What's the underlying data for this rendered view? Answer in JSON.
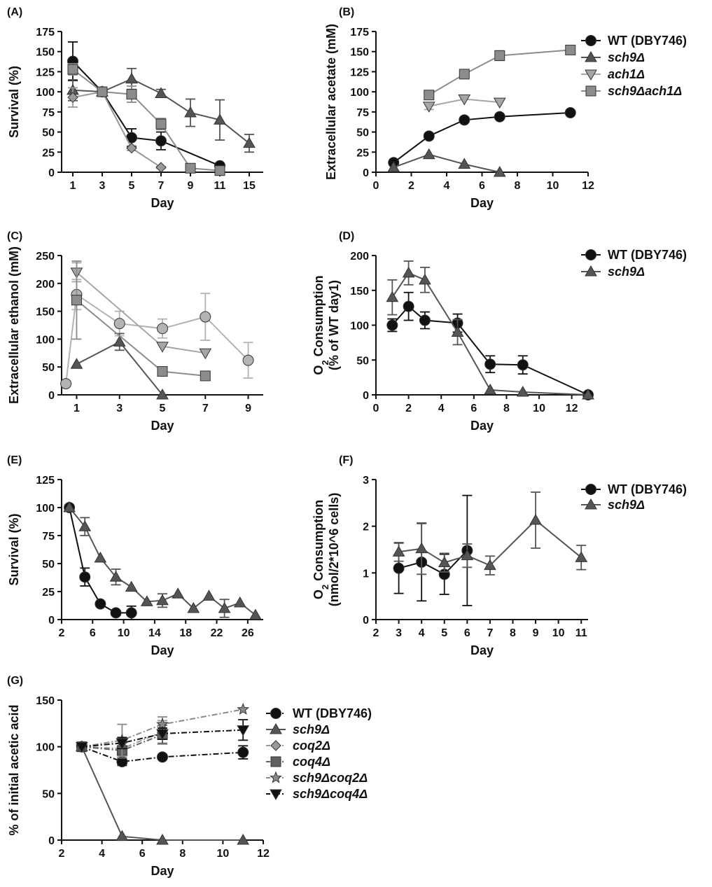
{
  "figure": {
    "panels": [
      "(A)",
      "(B)",
      "(C)",
      "(D)",
      "(E)",
      "(F)",
      "(G)"
    ]
  },
  "colors": {
    "WT": "#111111",
    "sch9": "#555555",
    "ach1": "#a6a6a6",
    "sch9ach1": "#8c8c8c",
    "coq2": "#999999",
    "coq4": "#606060",
    "sch9coq2": "#8a8a8a",
    "sch9coq4": "#111111",
    "gray_circle": "#b3b3b3"
  },
  "legends": {
    "B": [
      "WT (DBY746)",
      "sch9Δ",
      "ach1Δ",
      "sch9Δach1Δ"
    ],
    "D": [
      "WT (DBY746)",
      "sch9Δ"
    ],
    "F": [
      "WT (DBY746)",
      "sch9Δ"
    ],
    "G": [
      "WT (DBY746)",
      "sch9Δ",
      "coq2Δ",
      "coq4Δ",
      "sch9Δcoq2Δ",
      "sch9Δcoq4Δ"
    ]
  },
  "chart_data": [
    {
      "panel": "(A)",
      "type": "line",
      "xlabel": "Day",
      "ylabel": "Survival (%)",
      "x_ticks": [
        "1",
        "3",
        "5",
        "7",
        "9",
        "11",
        "15"
      ],
      "ylim": [
        0,
        175
      ],
      "y_ticks": [
        "0",
        "25",
        "50",
        "75",
        "100",
        "125",
        "150",
        "175"
      ],
      "series": [
        {
          "key": "WT",
          "marker": "circle",
          "points": [
            [
              1,
              138,
              24
            ],
            [
              3,
              100,
              0
            ],
            [
              5,
              43,
              11
            ],
            [
              7,
              39,
              11
            ],
            [
              11,
              8,
              3
            ]
          ]
        },
        {
          "key": "sch9",
          "marker": "triangle",
          "points": [
            [
              1,
              102,
              13
            ],
            [
              3,
              100,
              0
            ],
            [
              5,
              116,
              13
            ],
            [
              7,
              98,
              5
            ],
            [
              9,
              74,
              17
            ],
            [
              11,
              65,
              25
            ],
            [
              15,
              36,
              11
            ]
          ]
        },
        {
          "key": "coq2",
          "marker": "diamond",
          "points": [
            [
              1,
              93,
              12
            ],
            [
              3,
              100,
              0
            ],
            [
              5,
              30,
              3
            ],
            [
              7,
              6,
              1
            ]
          ]
        },
        {
          "key": "sch9ach1",
          "marker": "square",
          "points": [
            [
              1,
              128,
              7
            ],
            [
              3,
              100,
              0
            ],
            [
              5,
              97,
              10
            ],
            [
              7,
              60,
              7
            ],
            [
              9,
              5,
              3
            ],
            [
              11,
              2,
              1
            ]
          ]
        }
      ]
    },
    {
      "panel": "(B)",
      "type": "line",
      "xlabel": "Day",
      "ylabel": "Extracellular acetate (mM)",
      "x_ticks": [
        "0",
        "2",
        "4",
        "6",
        "8",
        "10",
        "12"
      ],
      "xlim": [
        0,
        12
      ],
      "ylim": [
        0,
        175
      ],
      "y_ticks": [
        "0",
        "25",
        "50",
        "75",
        "100",
        "125",
        "150",
        "175"
      ],
      "series": [
        {
          "key": "WT",
          "marker": "circle",
          "points": [
            [
              1,
              12,
              0
            ],
            [
              3,
              45,
              0
            ],
            [
              5,
              65,
              0
            ],
            [
              7,
              69,
              0
            ],
            [
              11,
              74,
              0
            ]
          ]
        },
        {
          "key": "sch9",
          "marker": "triangle",
          "points": [
            [
              1,
              6,
              0
            ],
            [
              3,
              22,
              0
            ],
            [
              5,
              10,
              0
            ],
            [
              7,
              0,
              0
            ]
          ]
        },
        {
          "key": "ach1",
          "marker": "triangle-down",
          "points": [
            [
              3,
              82,
              4
            ],
            [
              5,
              91,
              0
            ],
            [
              7,
              87,
              0
            ]
          ]
        },
        {
          "key": "sch9ach1",
          "marker": "square",
          "points": [
            [
              3,
              96,
              5
            ],
            [
              5,
              122,
              4
            ],
            [
              7,
              145,
              6
            ],
            [
              11,
              152,
              0
            ]
          ]
        }
      ]
    },
    {
      "panel": "(C)",
      "type": "line",
      "xlabel": "Day",
      "ylabel": "Extracellular ethanol (mM)",
      "x_ticks": [
        "1",
        "3",
        "5",
        "7",
        "9"
      ],
      "xlim": [
        0.3,
        9.7
      ],
      "ylim": [
        0,
        250
      ],
      "y_ticks": [
        "0",
        "50",
        "100",
        "150",
        "200",
        "250"
      ],
      "series": [
        {
          "key": "gray_circle",
          "marker": "circle",
          "points": [
            [
              0.5,
              20,
              0
            ],
            [
              1,
              180,
              27
            ],
            [
              3,
              128,
              22
            ],
            [
              5,
              119,
              17
            ],
            [
              7,
              140,
              42
            ],
            [
              9,
              62,
              32
            ]
          ]
        },
        {
          "key": "sch9",
          "marker": "triangle",
          "points": [
            [
              1,
              55,
              0
            ],
            [
              3,
              95,
              15
            ],
            [
              5,
              0,
              0
            ]
          ]
        },
        {
          "key": "ach1",
          "marker": "triangle-down",
          "points": [
            [
              1,
              220,
              17
            ],
            [
              5,
              87,
              0
            ],
            [
              7,
              75,
              0
            ]
          ]
        },
        {
          "key": "sch9ach1",
          "marker": "square",
          "points": [
            [
              1,
              170,
              70
            ],
            [
              5,
              42,
              0
            ],
            [
              7,
              34,
              0
            ]
          ]
        }
      ]
    },
    {
      "panel": "(D)",
      "type": "line",
      "xlabel": "Day",
      "ylabel": "O2 Consumption (% of WT day1)",
      "x_ticks": [
        "0",
        "2",
        "4",
        "6",
        "8",
        "10",
        "12"
      ],
      "xlim": [
        0,
        13
      ],
      "ylim": [
        0,
        200
      ],
      "y_ticks": [
        "0",
        "50",
        "100",
        "150",
        "200"
      ],
      "series": [
        {
          "key": "WT",
          "marker": "circle",
          "points": [
            [
              1,
              100,
              9
            ],
            [
              2,
              127,
              20
            ],
            [
              3,
              107,
              12
            ],
            [
              5,
              103,
              13
            ],
            [
              7,
              44,
              12
            ],
            [
              9,
              43,
              13
            ],
            [
              13,
              0,
              0
            ]
          ]
        },
        {
          "key": "sch9",
          "marker": "triangle",
          "points": [
            [
              1,
              140,
              25
            ],
            [
              2,
              175,
              17
            ],
            [
              3,
              165,
              18
            ],
            [
              5,
              90,
              18
            ],
            [
              7,
              7,
              0
            ],
            [
              9,
              4,
              0
            ],
            [
              13,
              0,
              0
            ]
          ]
        }
      ]
    },
    {
      "panel": "(E)",
      "type": "line",
      "xlabel": "Day",
      "ylabel": "Survival (%)",
      "x_ticks": [
        "2",
        "6",
        "10",
        "14",
        "18",
        "22",
        "26"
      ],
      "xlim": [
        2,
        28
      ],
      "ylim": [
        0,
        125
      ],
      "y_ticks": [
        "0",
        "25",
        "50",
        "75",
        "100",
        "125"
      ],
      "series": [
        {
          "key": "WT",
          "marker": "circle",
          "points": [
            [
              3,
              100,
              0
            ],
            [
              5,
              38,
              8
            ],
            [
              7,
              14,
              0
            ],
            [
              9,
              6,
              0
            ],
            [
              11,
              6,
              6
            ]
          ]
        },
        {
          "key": "sch9",
          "marker": "triangle",
          "points": [
            [
              3,
              100,
              0
            ],
            [
              5,
              83,
              8
            ],
            [
              7,
              55,
              0
            ],
            [
              9,
              38,
              7
            ],
            [
              11,
              29,
              0
            ],
            [
              13,
              16,
              0
            ],
            [
              15,
              17,
              6
            ],
            [
              17,
              23,
              0
            ],
            [
              19,
              10,
              0
            ],
            [
              21,
              21,
              0
            ],
            [
              23,
              10,
              8
            ],
            [
              25,
              15,
              0
            ],
            [
              27,
              4,
              0
            ]
          ]
        }
      ]
    },
    {
      "panel": "(F)",
      "type": "line",
      "xlabel": "Day",
      "ylabel": "O2 Consumption (nmol/2*10^6 cells)",
      "x_ticks": [
        "2",
        "3",
        "4",
        "5",
        "6",
        "7",
        "8",
        "9",
        "10",
        "11"
      ],
      "xlim": [
        2,
        11.3
      ],
      "ylim": [
        0,
        3
      ],
      "y_ticks": [
        "0",
        "1",
        "2",
        "3"
      ],
      "series": [
        {
          "key": "WT",
          "marker": "circle",
          "points": [
            [
              3,
              1.1,
              0.54
            ],
            [
              4,
              1.23,
              0.83
            ],
            [
              5,
              0.97,
              0.43
            ],
            [
              6,
              1.48,
              1.18
            ]
          ]
        },
        {
          "key": "sch9",
          "marker": "triangle",
          "points": [
            [
              3,
              1.45,
              0.2
            ],
            [
              4,
              1.52,
              0.55
            ],
            [
              5,
              1.22,
              0.2
            ],
            [
              6,
              1.37,
              0.25
            ],
            [
              7,
              1.16,
              0.2
            ],
            [
              9,
              2.13,
              0.6
            ],
            [
              11,
              1.33,
              0.26
            ]
          ]
        }
      ]
    },
    {
      "panel": "(G)",
      "type": "line",
      "xlabel": "Day",
      "ylabel": "% of initial acetic acid",
      "x_ticks": [
        "2",
        "4",
        "6",
        "8",
        "10",
        "12"
      ],
      "xlim": [
        2,
        12
      ],
      "ylim": [
        0,
        150
      ],
      "y_ticks": [
        "0",
        "50",
        "100",
        "150"
      ],
      "series": [
        {
          "key": "WT",
          "marker": "circle",
          "dash": true,
          "points": [
            [
              3,
              100,
              0
            ],
            [
              5,
              84,
              4
            ],
            [
              7,
              89,
              0
            ],
            [
              11,
              94,
              7
            ]
          ]
        },
        {
          "key": "sch9",
          "marker": "triangle",
          "dash": false,
          "points": [
            [
              3,
              100,
              0
            ],
            [
              5,
              4,
              0
            ],
            [
              7,
              0,
              0
            ],
            [
              11,
              0,
              0
            ]
          ]
        },
        {
          "key": "coq2",
          "marker": "diamond",
          "dash": true,
          "points": [
            [
              3,
              100,
              0
            ],
            [
              5,
              98,
              10
            ],
            [
              7,
              116,
              12
            ]
          ]
        },
        {
          "key": "coq4",
          "marker": "square",
          "dash": true,
          "points": [
            [
              3,
              100,
              0
            ],
            [
              5,
              96,
              8
            ],
            [
              7,
              113,
              10
            ]
          ]
        },
        {
          "key": "sch9coq2",
          "marker": "star",
          "dash": true,
          "points": [
            [
              3,
              100,
              0
            ],
            [
              5,
              107,
              17
            ],
            [
              7,
              124,
              8
            ],
            [
              11,
              140,
              0
            ]
          ]
        },
        {
          "key": "sch9coq4",
          "marker": "triangle-down",
          "dash": true,
          "points": [
            [
              3,
              100,
              0
            ],
            [
              5,
              104,
              6
            ],
            [
              7,
              114,
              6
            ],
            [
              11,
              118,
              11
            ]
          ]
        }
      ]
    }
  ]
}
